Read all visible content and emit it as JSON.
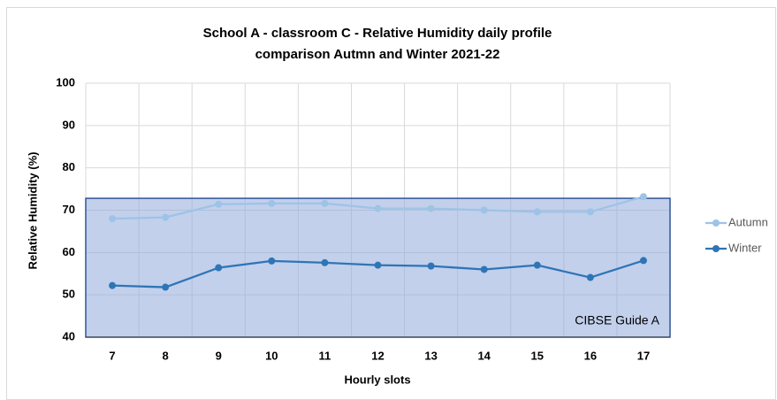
{
  "chart_data": {
    "type": "line",
    "title": [
      "School A - classroom C - Relative Humidity daily profile",
      "comparison Autmn and Winter 2021-22"
    ],
    "x_label": "Hourly slots",
    "y_label": "Relative Humidity (%)",
    "categories": [
      "7",
      "8",
      "9",
      "10",
      "11",
      "12",
      "13",
      "14",
      "15",
      "16",
      "17"
    ],
    "series": [
      {
        "name": "Autumn",
        "color": "#9dc3e6",
        "values": [
          68,
          68.3,
          71.4,
          71.6,
          71.6,
          70.4,
          70.4,
          70,
          69.6,
          69.6,
          73.2
        ]
      },
      {
        "name": "Winter",
        "color": "#2e75b6",
        "values": [
          52.2,
          51.8,
          56.4,
          58,
          57.6,
          57,
          56.8,
          56,
          57,
          54.1,
          58.1
        ]
      }
    ],
    "band": {
      "label": "CIBSE Guide A",
      "range": [
        40,
        72.8
      ],
      "color": "#8faadc",
      "edge": "#2f5597"
    },
    "ylim": [
      40,
      100
    ],
    "yticks": [
      40,
      50,
      60,
      70,
      80,
      90,
      100
    ],
    "grid": true,
    "legend": "right"
  }
}
